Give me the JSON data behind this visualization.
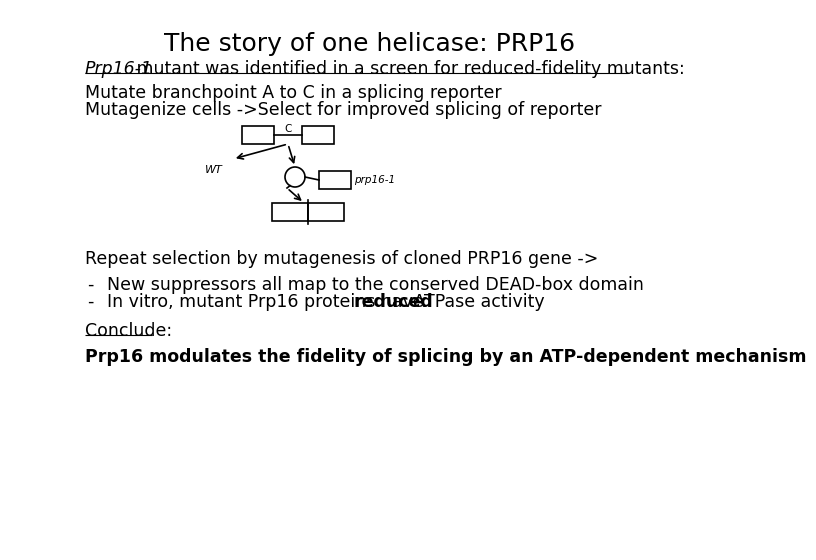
{
  "title": "The story of one helicase: PRP16",
  "title_fontsize": 18,
  "bg_color": "#ffffff",
  "text_color": "#000000",
  "line1_italic": "Prp16-1",
  "line1_rest": " mutant was identified in a screen for reduced-fidelity mutants:",
  "line2": "Mutate branchpoint A to C in a splicing reporter",
  "line3": "Mutagenize cells ->Select for improved splicing of reporter",
  "line4": "Repeat selection by mutagenesis of cloned PRP16 gene ->",
  "line5": "New suppressors all map to the conserved DEAD-box domain",
  "line6_pre": "In vitro, mutant Prp16 proteins have ",
  "line6_bold": "reduced",
  "line6_post": " ATPase activity",
  "conclude_label": "Conclude:",
  "final_bold": "Prp16 modulates the fidelity of splicing by an ATP-dependent mechanism",
  "font_family": "DejaVu Sans",
  "body_fontsize": 12.5
}
